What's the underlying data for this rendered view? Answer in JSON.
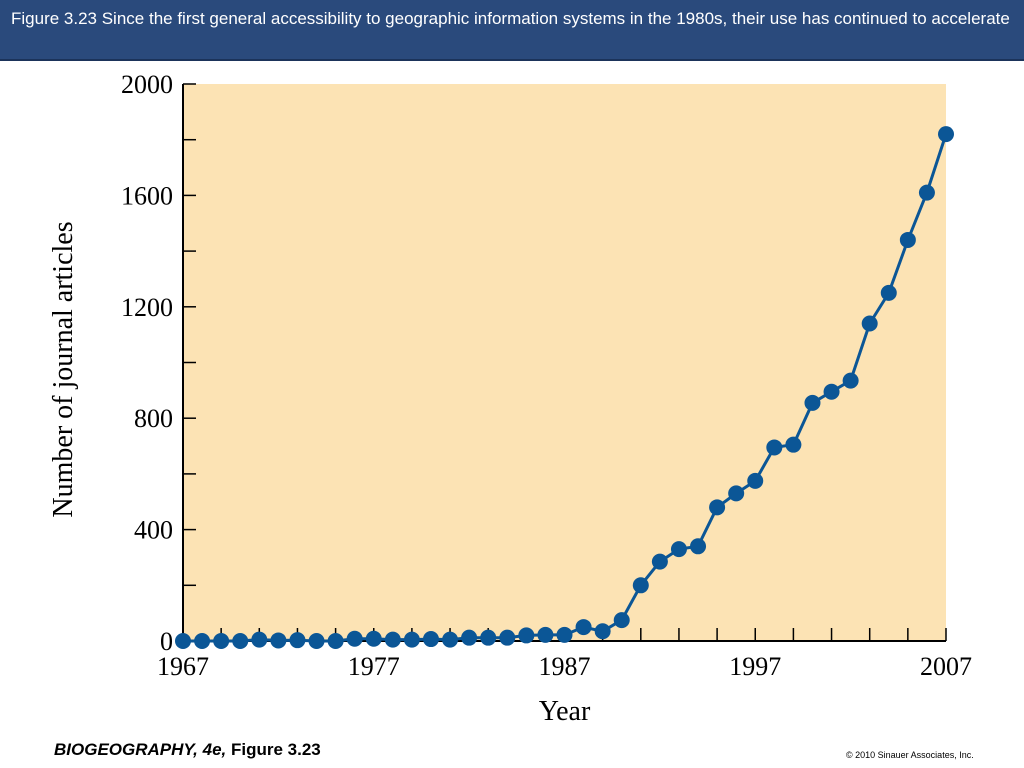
{
  "header": {
    "caption": "Figure 3.23  Since the first general accessibility to geographic information systems in the 1980s, their use has continued to accelerate"
  },
  "footer": {
    "book_title": "BIOGEOGRAPHY, 4e,",
    "figure_ref": "Figure 3.23",
    "copyright": "© 2010 Sinauer Associates, Inc."
  },
  "colors": {
    "header_background": "#2a4a7c",
    "plot_background": "#fce3b4",
    "series_color": "#0b5696"
  },
  "chart_data": {
    "type": "line",
    "title": "",
    "xlabel": "Year",
    "ylabel": "Number of journal articles",
    "xlim": [
      1967,
      2007
    ],
    "ylim": [
      0,
      2000
    ],
    "x_ticks": [
      1967,
      1977,
      1987,
      1997,
      2007
    ],
    "y_ticks": [
      0,
      400,
      800,
      1200,
      1600,
      2000
    ],
    "x_minor_step": 2,
    "y_minor_step": 200,
    "grid": false,
    "legend": "none",
    "series": [
      {
        "x": [
          1967,
          1968,
          1969,
          1970,
          1971,
          1972,
          1973,
          1974,
          1975,
          1976,
          1977,
          1978,
          1979,
          1980,
          1981,
          1982,
          1983,
          1984,
          1985,
          1986,
          1987,
          1988,
          1989,
          1990,
          1991,
          1992,
          1993,
          1994,
          1995,
          1996,
          1997,
          1998,
          1999,
          2000,
          2001,
          2002,
          2003,
          2004,
          2005,
          2006,
          2007
        ],
        "y": [
          0,
          0,
          0,
          0,
          5,
          2,
          3,
          0,
          0,
          8,
          8,
          5,
          5,
          7,
          5,
          12,
          12,
          12,
          20,
          22,
          22,
          50,
          35,
          75,
          200,
          285,
          330,
          340,
          480,
          530,
          575,
          695,
          705,
          855,
          895,
          935,
          1140,
          1250,
          1440,
          1610,
          1820
        ]
      }
    ]
  }
}
